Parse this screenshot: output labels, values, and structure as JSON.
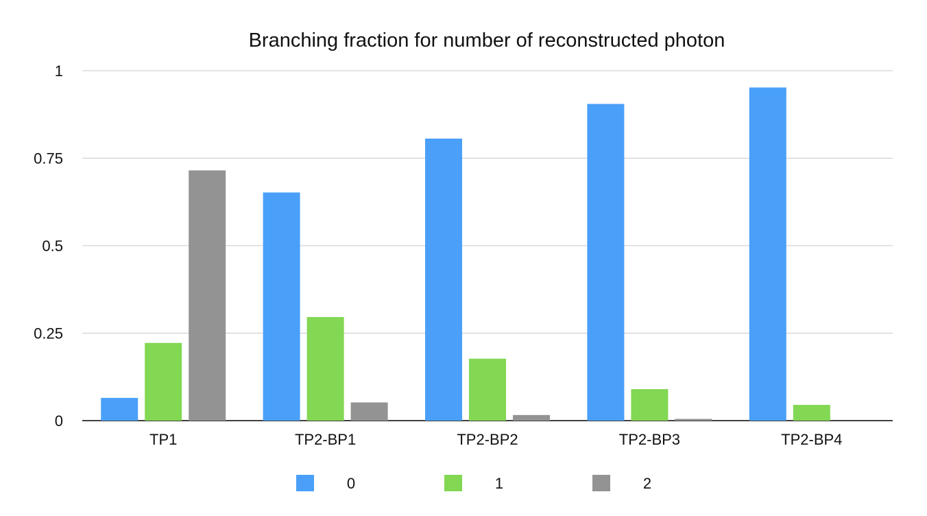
{
  "chart_data": {
    "type": "bar",
    "title": "Branching fraction for number of reconstructed photon",
    "xlabel": "",
    "ylabel": "",
    "ylim": [
      0,
      1
    ],
    "yticks": [
      0,
      0.25,
      0.5,
      0.75,
      1
    ],
    "ytick_labels": [
      "0",
      "0.25",
      "0.5",
      "0.75",
      "1"
    ],
    "categories": [
      "TP1",
      "TP2-BP1",
      "TP2-BP2",
      "TP2-BP3",
      "TP2-BP4"
    ],
    "series": [
      {
        "name": "0",
        "color": "#4aa0f8",
        "values": [
          0.065,
          0.652,
          0.806,
          0.905,
          0.952
        ]
      },
      {
        "name": "1",
        "color": "#82d753",
        "values": [
          0.222,
          0.296,
          0.177,
          0.09,
          0.045
        ]
      },
      {
        "name": "2",
        "color": "#939393",
        "values": [
          0.715,
          0.052,
          0.016,
          0.005,
          0.0
        ]
      }
    ],
    "grid": true,
    "legend_position": "bottom"
  }
}
